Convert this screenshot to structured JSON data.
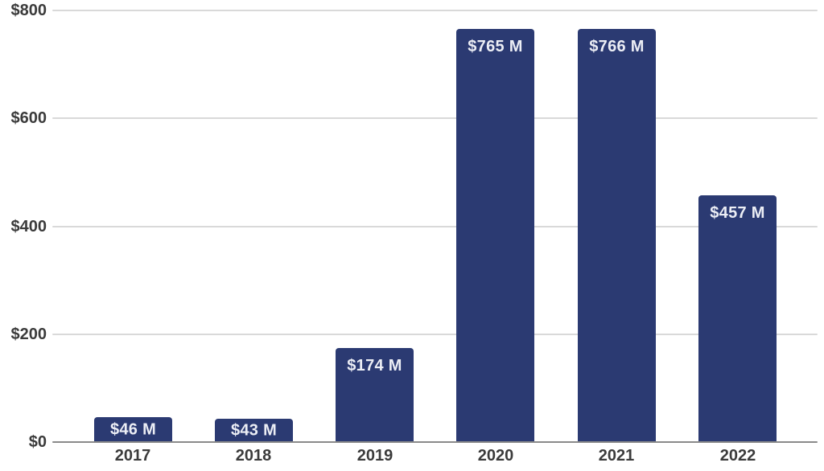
{
  "chart_data": {
    "type": "bar",
    "title": "",
    "xlabel": "",
    "ylabel": "",
    "categories": [
      "2017",
      "2018",
      "2019",
      "2020",
      "2021",
      "2022"
    ],
    "values": [
      46,
      43,
      174,
      765,
      766,
      457
    ],
    "bar_labels": [
      "$46 M",
      "$43 M",
      "$174 M",
      "$765 M",
      "$766 M",
      "$457 M"
    ],
    "ylim": [
      0,
      800
    ],
    "yticks": [
      0,
      200,
      400,
      600,
      800
    ],
    "ytick_labels": [
      "$0",
      "$200",
      "$400",
      "$600",
      "$800"
    ],
    "grid": true,
    "legend": false,
    "colors": {
      "bar": "#2b3a72",
      "bar_label_text": "#eceef5",
      "axis_text": "#3b3b3b",
      "gridline": "#d9d9d9",
      "baseline": "#8a8a8a",
      "background": "#ffffff"
    }
  }
}
